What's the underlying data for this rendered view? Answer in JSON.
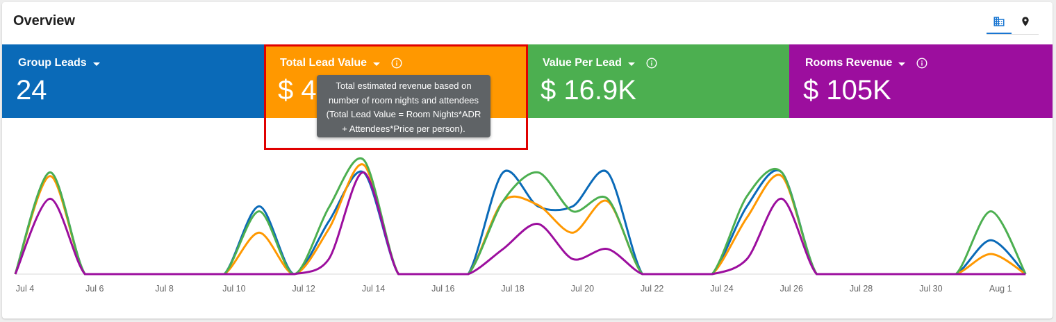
{
  "header": {
    "title": "Overview"
  },
  "view_toggle": {
    "active": "building-view",
    "items": [
      "building-view",
      "map-view"
    ]
  },
  "tiles": [
    {
      "label": "Group Leads",
      "value": "24",
      "color": "#0a6ab8",
      "has_info": false
    },
    {
      "label": "Total Lead Value",
      "value": "$ 4",
      "color": "#ff9800",
      "has_info": true
    },
    {
      "label": "Value Per Lead",
      "value": "$ 16.9K",
      "color": "#4caf50",
      "has_info": true
    },
    {
      "label": "Rooms Revenue",
      "value": "$ 105K",
      "color": "#9c0e9e",
      "has_info": true
    }
  ],
  "tooltip": {
    "lines": [
      "Total estimated revenue based on",
      "number of room nights and attendees",
      "(Total Lead Value = Room Nights*ADR",
      "+ Attendees*Price per person)."
    ]
  },
  "chart_data": {
    "type": "line",
    "smooth": true,
    "x": [
      "Jul 4",
      "Jul 5",
      "Jul 6",
      "Jul 7",
      "Jul 8",
      "Jul 9",
      "Jul 10",
      "Jul 11",
      "Jul 12",
      "Jul 13",
      "Jul 14",
      "Jul 15",
      "Jul 16",
      "Jul 17",
      "Jul 18",
      "Jul 19",
      "Jul 20",
      "Jul 21",
      "Jul 22",
      "Jul 23",
      "Jul 24",
      "Jul 25",
      "Jul 26",
      "Jul 27",
      "Jul 28",
      "Jul 29",
      "Jul 30",
      "Jul 31",
      "Aug 1",
      "Aug 2"
    ],
    "xticks": [
      "Jul 4",
      "Jul 6",
      "Jul 8",
      "Jul 10",
      "Jul 12",
      "Jul 14",
      "Jul 16",
      "Jul 18",
      "Jul 20",
      "Jul 22",
      "Jul 24",
      "Jul 26",
      "Jul 28",
      "Jul 30",
      "Aug 1"
    ],
    "ylim": [
      0,
      1
    ],
    "grid": false,
    "legend": "none",
    "series": [
      {
        "color": "#0a6ab8",
        "values": [
          0,
          0.81,
          0,
          0,
          0,
          0,
          0,
          0.54,
          0,
          0.42,
          0.81,
          0,
          0,
          0,
          0.81,
          0.54,
          0.54,
          0.81,
          0,
          0,
          0,
          0.54,
          0.81,
          0,
          0,
          0,
          0,
          0,
          0.27,
          0
        ]
      },
      {
        "color": "#ff9800",
        "values": [
          0,
          0.78,
          0,
          0,
          0,
          0,
          0,
          0.33,
          0,
          0.36,
          0.87,
          0,
          0,
          0,
          0.58,
          0.55,
          0.33,
          0.58,
          0,
          0,
          0,
          0.45,
          0.78,
          0,
          0,
          0,
          0,
          0,
          0.16,
          0
        ]
      },
      {
        "color": "#4caf50",
        "values": [
          0,
          0.81,
          0,
          0,
          0,
          0,
          0,
          0.5,
          0,
          0.53,
          0.91,
          0,
          0,
          0,
          0.58,
          0.81,
          0.5,
          0.6,
          0,
          0,
          0,
          0.62,
          0.81,
          0,
          0,
          0,
          0,
          0,
          0.5,
          0
        ]
      },
      {
        "color": "#9c0e9e",
        "values": [
          0,
          0.6,
          0,
          0,
          0,
          0,
          0,
          0,
          0,
          0.12,
          0.81,
          0,
          0,
          0,
          0.2,
          0.4,
          0.12,
          0.2,
          0,
          0,
          0,
          0.12,
          0.6,
          0,
          0,
          0,
          0,
          0,
          0,
          0
        ]
      }
    ]
  }
}
